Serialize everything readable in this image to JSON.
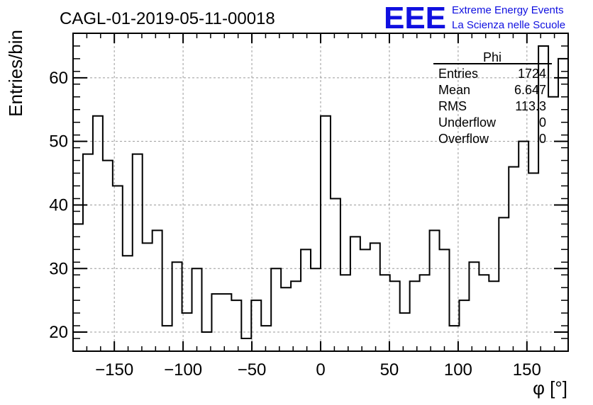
{
  "chart_data": {
    "type": "bar",
    "title": "CAGL-01-2019-05-11-00018",
    "xlabel": "φ [°]",
    "ylabel": "Entries/bin",
    "xlim": [
      -180,
      180
    ],
    "ylim": [
      17,
      67
    ],
    "grid": true,
    "bin_width": 7.2,
    "x_ticks": [
      -150,
      -100,
      -50,
      0,
      50,
      100,
      150
    ],
    "y_ticks": [
      20,
      30,
      40,
      50,
      60
    ],
    "x_tick_labels": [
      "−150",
      "−100",
      "−50",
      "0",
      "50",
      "100",
      "150"
    ],
    "y_tick_labels": [
      "20",
      "30",
      "40",
      "50",
      "60"
    ],
    "values": [
      37,
      48,
      54,
      47,
      43,
      32,
      48,
      34,
      36,
      21,
      31,
      23,
      30,
      20,
      26,
      26,
      25,
      19,
      25,
      21,
      30,
      27,
      28,
      33,
      30,
      54,
      41,
      29,
      35,
      33,
      34,
      29,
      28,
      23,
      28,
      29,
      36,
      33,
      21,
      25,
      31,
      29,
      28,
      38,
      46,
      50,
      45,
      65,
      57,
      63
    ],
    "stats": {
      "name": "Phi",
      "rows": [
        {
          "label": "Entries",
          "value": "1724"
        },
        {
          "label": "Mean",
          "value": "6.647"
        },
        {
          "label": "RMS",
          "value": "113.3"
        },
        {
          "label": "Underflow",
          "value": "0"
        },
        {
          "label": "Overflow",
          "value": "0"
        }
      ]
    },
    "colors": {
      "line": "#000000",
      "grid": "#9a9a9a",
      "logo": "#1010e0"
    }
  },
  "logo": {
    "mark": "EEE",
    "line1": "Extreme Energy Events",
    "line2": "La Scienza nelle Scuole"
  }
}
